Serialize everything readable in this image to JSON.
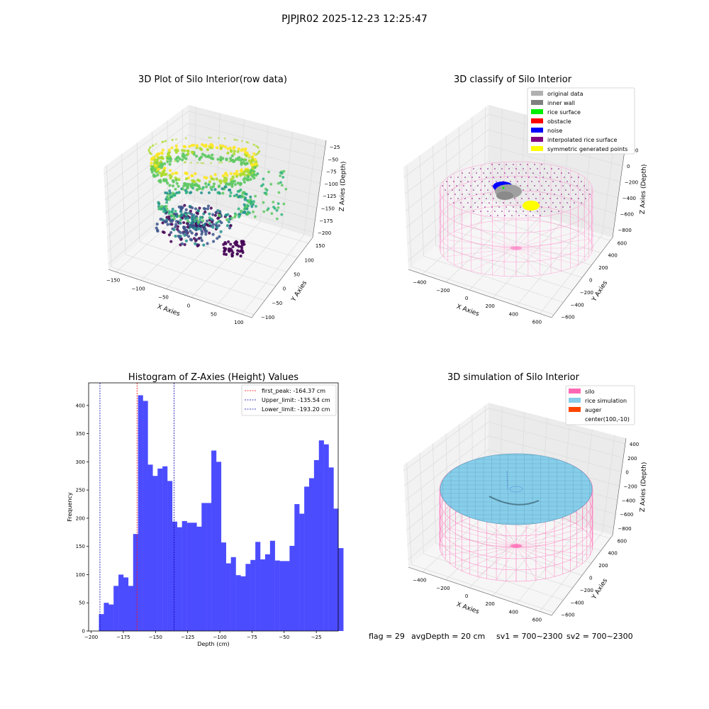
{
  "suptitle": "PJPJR02 2025-12-23 12:25:47",
  "footer": {
    "flag": "flag = 29",
    "avg_depth": "avgDepth = 20 cm",
    "sv1": "sv1 = 700~2300",
    "sv2": "sv2 = 700~2300"
  },
  "chart_data": [
    {
      "type": "scatter",
      "projection": "3d",
      "title": "3D Plot of Silo Interior(row data)",
      "xlabel": "X Axies",
      "ylabel": "Y Axies",
      "zlabel": "Z Axies (Depth)",
      "x_ticks": [
        -150,
        -100,
        -50,
        0,
        50,
        100
      ],
      "y_ticks": [
        -100,
        -50,
        0,
        50,
        100,
        150
      ],
      "z_ticks": [
        -200,
        -175,
        -150,
        -125,
        -100,
        -75,
        -50,
        -25
      ],
      "colormap": "viridis",
      "grid": true
    },
    {
      "type": "scatter",
      "projection": "3d",
      "title": "3D classify of Silo Interior",
      "xlabel": "X Axies",
      "ylabel": "Y Axies",
      "zlabel": "Z Axies (Depth)",
      "x_ticks": [
        -400,
        -200,
        0,
        200,
        400,
        600
      ],
      "y_ticks": [
        -600,
        -400,
        -200,
        0,
        200,
        400,
        600
      ],
      "z_ticks": [
        -800,
        -600,
        -400,
        -200,
        0,
        200
      ],
      "legend_position": "top-right",
      "legend": [
        {
          "label": "original data",
          "color": "#b0b0b0"
        },
        {
          "label": "inner wall",
          "color": "#808080"
        },
        {
          "label": "rice surface",
          "color": "#00ee00"
        },
        {
          "label": "obstacle",
          "color": "#ff0000"
        },
        {
          "label": "noise",
          "color": "#0000ff"
        },
        {
          "label": "interpolated rice surface",
          "color": "#800080"
        },
        {
          "label": "symmetric generated points",
          "color": "#ffff00"
        }
      ],
      "grid": true
    },
    {
      "type": "bar",
      "title": "Histogram of Z-Axies (Height) Values",
      "xlabel": "Depth (cm)",
      "ylabel": "Frequency",
      "xlim": [
        -202,
        -8
      ],
      "ylim": [
        0,
        440
      ],
      "x_ticks": [
        -200,
        -175,
        -150,
        -125,
        -100,
        -75,
        -50,
        -25
      ],
      "y_ticks": [
        0,
        50,
        100,
        150,
        200,
        250,
        300,
        350,
        400
      ],
      "bin_start": -194,
      "bin_width": 3.8,
      "bar_color": "#4c4cff",
      "values": [
        30,
        50,
        47,
        80,
        100,
        95,
        80,
        172,
        418,
        408,
        295,
        275,
        288,
        292,
        266,
        194,
        184,
        195,
        192,
        192,
        185,
        227,
        227,
        320,
        300,
        157,
        120,
        131,
        99,
        97,
        119,
        126,
        158,
        127,
        136,
        160,
        125,
        124,
        124,
        151,
        225,
        208,
        256,
        271,
        303,
        338,
        331,
        290,
        217,
        147
      ],
      "lines": [
        {
          "label": "first_peak: -164.37 cm",
          "x": -164.37,
          "color": "#ff0000"
        },
        {
          "label": "Upper_limit: -135.54 cm",
          "x": -135.54,
          "color": "#0000aa"
        },
        {
          "label": "Lower_limit: -193.20 cm",
          "x": -193.2,
          "color": "#0000aa"
        }
      ],
      "legend_position": "top-right"
    },
    {
      "type": "scatter",
      "projection": "3d",
      "title": "3D simulation of Silo Interior",
      "xlabel": "X Axies",
      "ylabel": "Y Axies",
      "zlabel": "Z Axies (Depth)",
      "x_ticks": [
        -400,
        -200,
        0,
        200,
        400,
        600
      ],
      "y_ticks": [
        -600,
        -400,
        -200,
        0,
        200,
        400,
        600
      ],
      "z_ticks": [
        -800,
        -600,
        -400,
        -200,
        0,
        200,
        400
      ],
      "legend_position": "top-right",
      "legend": [
        {
          "label": "silo",
          "color": "#ff69b4"
        },
        {
          "label": "rice simulation",
          "color": "#87ceeb"
        },
        {
          "label": "auger",
          "color": "#ff4500"
        },
        {
          "label": "center(100,-10)",
          "color": ""
        }
      ],
      "grid": true
    }
  ]
}
